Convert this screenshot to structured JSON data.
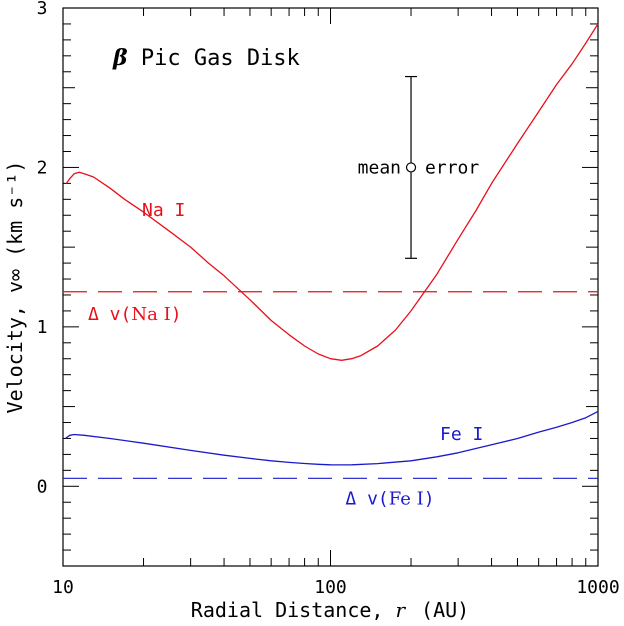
{
  "chart_data": {
    "type": "line",
    "title": "β Pic Gas Disk",
    "xlabel_prefix": "Radial Distance, ",
    "xlabel_var": "r",
    "xlabel_unit": "(AU)",
    "ylabel": "Velocity, v∞ (km s⁻¹)",
    "xscale": "log",
    "xlim": [
      10,
      1000
    ],
    "ylim": [
      -0.5,
      3
    ],
    "x_ticks": [
      10,
      100,
      1000
    ],
    "x_tick_labels": [
      "10",
      "100",
      "1000"
    ],
    "y_ticks": [
      0,
      1,
      2,
      3
    ],
    "y_tick_labels": [
      "0",
      "1",
      "2",
      "3"
    ],
    "grid": false,
    "series": [
      {
        "name": "Na I",
        "color": "#e8101a",
        "style": "solid",
        "x": [
          10.3,
          10.6,
          11,
          11.5,
          12,
          13,
          15,
          17,
          20,
          25,
          30,
          35,
          40,
          50,
          60,
          70,
          80,
          90,
          100,
          110,
          120,
          130,
          150,
          175,
          200,
          250,
          300,
          350,
          400,
          500,
          600,
          700,
          800,
          900,
          1000
        ],
        "y": [
          1.9,
          1.93,
          1.96,
          1.97,
          1.96,
          1.94,
          1.87,
          1.8,
          1.72,
          1.6,
          1.5,
          1.4,
          1.32,
          1.17,
          1.04,
          0.95,
          0.88,
          0.83,
          0.8,
          0.79,
          0.8,
          0.82,
          0.88,
          0.98,
          1.1,
          1.33,
          1.55,
          1.73,
          1.9,
          2.15,
          2.35,
          2.52,
          2.65,
          2.78,
          2.9
        ]
      },
      {
        "name": "Fe I",
        "color": "#1a1acc",
        "style": "solid",
        "x": [
          10.2,
          10.6,
          11,
          12,
          15,
          20,
          30,
          40,
          50,
          60,
          70,
          80,
          90,
          100,
          110,
          120,
          150,
          200,
          250,
          300,
          400,
          500,
          600,
          700,
          800,
          900,
          1000
        ],
        "y": [
          0.3,
          0.32,
          0.325,
          0.32,
          0.3,
          0.27,
          0.225,
          0.195,
          0.175,
          0.16,
          0.15,
          0.143,
          0.138,
          0.135,
          0.134,
          0.135,
          0.142,
          0.16,
          0.185,
          0.21,
          0.26,
          0.3,
          0.34,
          0.37,
          0.4,
          0.43,
          0.47
        ]
      }
    ],
    "reference_lines": [
      {
        "label_prefix": "Δ v(",
        "label_species": "Na I",
        "label_suffix": ")",
        "y": 1.22,
        "color": "#e8101a",
        "style": "dashed"
      },
      {
        "label_prefix": "Δ v(",
        "label_species": "Fe I",
        "label_suffix": ")",
        "y": 0.05,
        "color": "#1a1acc",
        "style": "dashed"
      }
    ],
    "error_bar": {
      "label_left": "mean",
      "label_right": "error",
      "x": 200,
      "y": 2.0,
      "y_low": 1.43,
      "y_high": 2.57
    }
  }
}
